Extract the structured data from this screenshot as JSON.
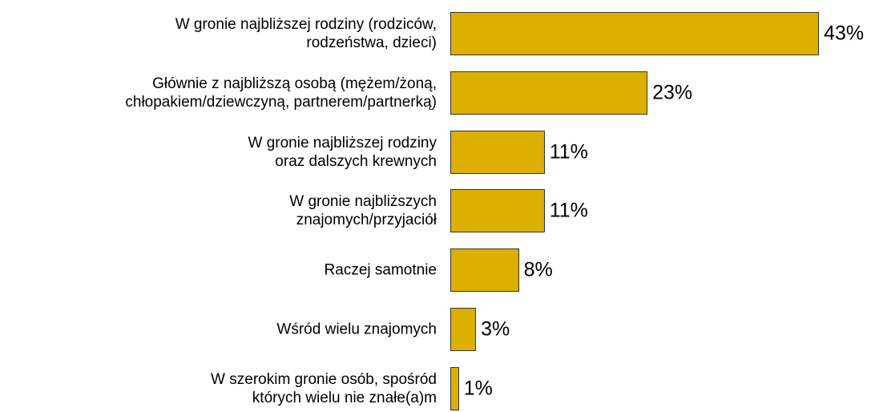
{
  "chart_data": {
    "type": "bar",
    "orientation": "horizontal",
    "categories": [
      "W gronie najbliższej rodziny (rodziców,\nrodzeństwa, dzieci)",
      "Głównie z najbliższą osobą (mężem/żoną,\nchłopakiem/dziewczyną, partnerem/partnerką)",
      "W gronie najbliższej rodziny\noraz dalszych krewnych",
      "W gronie najbliższych\nznajomych/przyjaciół",
      "Raczej samotnie",
      "Wśród wielu znajomych",
      "W szerokim gronie osób, spośród\nktórych wielu nie znałe(a)m"
    ],
    "values": [
      43,
      23,
      11,
      11,
      8,
      3,
      1
    ],
    "value_labels": [
      "43%",
      "23%",
      "11%",
      "11%",
      "8%",
      "3%",
      "1%"
    ],
    "color": "#dcaf00"
  }
}
